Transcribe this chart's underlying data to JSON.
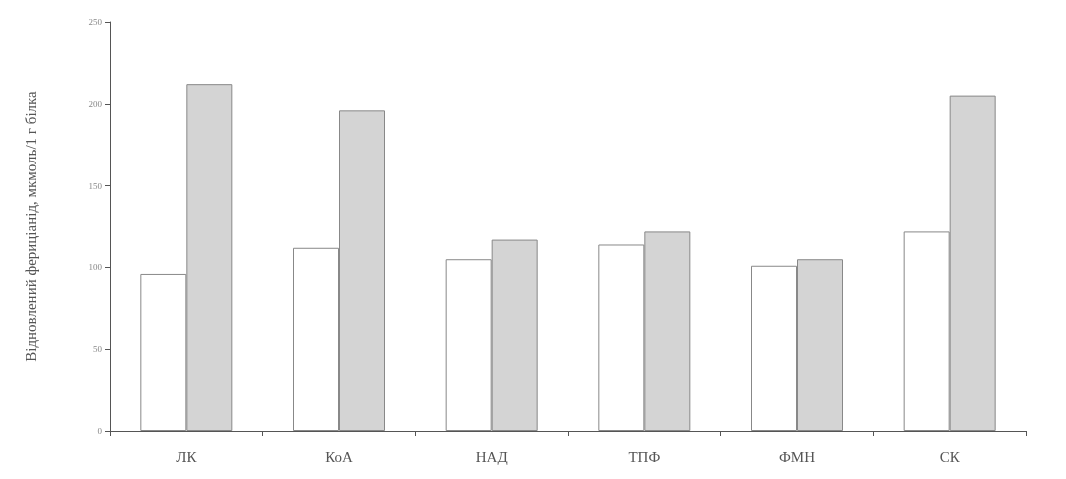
{
  "chart_data": {
    "type": "bar",
    "ylabel": "Відновлений фериціанід, мкмоль/1 г білка",
    "categories": [
      "ЛК",
      "КоА",
      "НАД",
      "ТПФ",
      "ФМН",
      "СК"
    ],
    "series": [
      {
        "color": "#ffffff",
        "values": [
          96,
          112,
          105,
          114,
          101,
          122
        ]
      },
      {
        "color": "#d4d4d4",
        "values": [
          212,
          196,
          117,
          122,
          105,
          205
        ]
      }
    ],
    "ylim": [
      0,
      250
    ],
    "yticks": [
      0,
      50,
      100,
      150,
      200,
      250
    ],
    "grid": false
  }
}
